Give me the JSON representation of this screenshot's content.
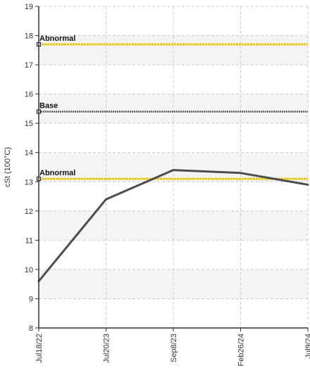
{
  "chart_data": {
    "type": "line",
    "title": "",
    "xlabel": "",
    "ylabel": "cSt (100°C)",
    "ylim": [
      8,
      19
    ],
    "yticks": [
      8,
      9,
      10,
      11,
      12,
      13,
      14,
      15,
      16,
      17,
      18,
      19
    ],
    "grid": true,
    "categories": [
      "Jul18/22",
      "Jul20/23",
      "Sep8/23",
      "Feb26/24",
      "Jul9/24"
    ],
    "series": [
      {
        "values": [
          9.6,
          12.4,
          13.4,
          13.3,
          12.9
        ],
        "color": "#4d4d4d"
      }
    ],
    "reference_lines": [
      {
        "label": "Abnormal",
        "value": 17.7,
        "color": "#f2c200",
        "style": "dotted"
      },
      {
        "label": "Base",
        "value": 15.4,
        "color": "#555555",
        "style": "dotted"
      },
      {
        "label": "Abnormal",
        "value": 13.1,
        "color": "#f2c200",
        "style": "dotted"
      }
    ],
    "colors": {
      "band_fill": "#f4f4f4",
      "grid": "#cccccc",
      "axis": "#333333"
    }
  }
}
